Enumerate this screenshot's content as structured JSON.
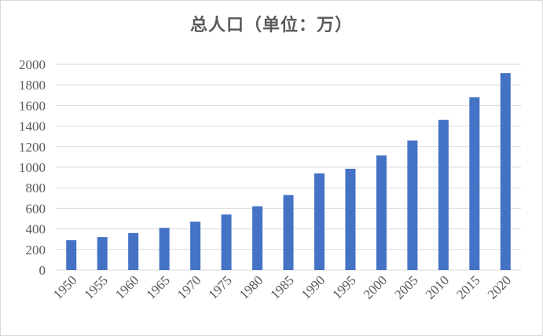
{
  "chart_data": {
    "type": "bar",
    "title": "总人口（单位：万）",
    "xlabel": "",
    "ylabel": "",
    "categories": [
      "1950",
      "1955",
      "1960",
      "1965",
      "1970",
      "1975",
      "1980",
      "1985",
      "1990",
      "1995",
      "2000",
      "2005",
      "2010",
      "2015",
      "2020"
    ],
    "series": [
      {
        "values": [
          290,
          320,
          360,
          410,
          470,
          540,
          620,
          730,
          940,
          985,
          1115,
          1260,
          1460,
          1680,
          1915
        ]
      }
    ],
    "ylim": [
      0,
      2000
    ],
    "yticks": [
      0,
      200,
      400,
      600,
      800,
      1000,
      1200,
      1400,
      1600,
      1800,
      2000
    ],
    "grid": true,
    "legend": "none",
    "colors": {
      "bar": "#4472c4",
      "grid": "#d9d9d9",
      "text": "#595959"
    }
  }
}
